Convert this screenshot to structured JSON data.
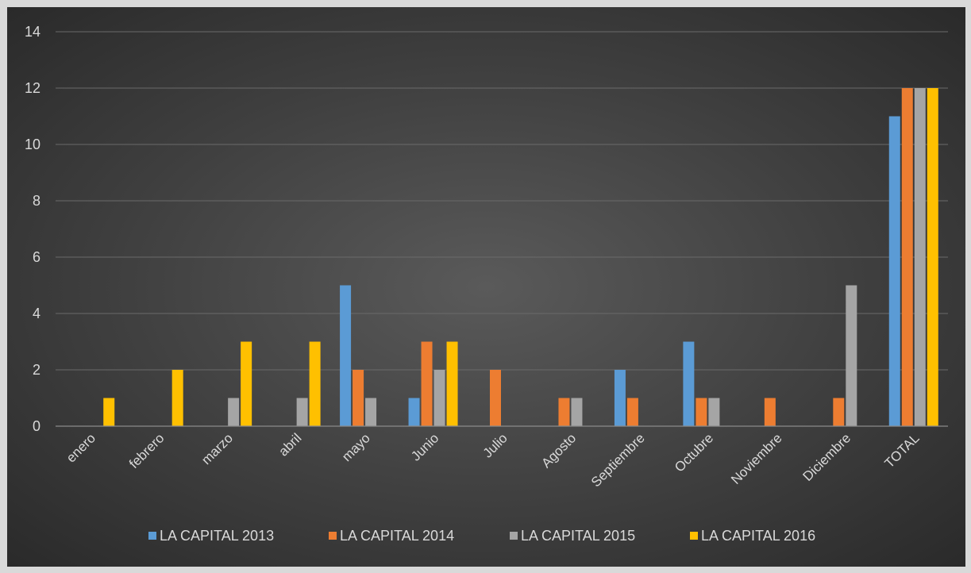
{
  "chart_data": {
    "type": "bar",
    "title": "",
    "xlabel": "",
    "ylabel": "",
    "ylim": [
      0,
      14
    ],
    "yticks": [
      0,
      2,
      4,
      6,
      8,
      10,
      12,
      14
    ],
    "grid": true,
    "legend_position": "bottom",
    "categories": [
      "enero",
      "febrero",
      "marzo",
      "abril",
      "mayo",
      "Junio",
      "Julio",
      "Agosto",
      "Septiembre",
      "Octubre",
      "Noviembre",
      "Diciembre",
      "TOTAL"
    ],
    "series": [
      {
        "name": "LA CAPITAL  2013",
        "color": "#5b9bd5",
        "values": [
          0,
          0,
          0,
          0,
          5,
          1,
          0,
          0,
          2,
          3,
          0,
          0,
          11
        ]
      },
      {
        "name": "LA CAPITAL  2014",
        "color": "#ed7d31",
        "values": [
          0,
          0,
          0,
          0,
          2,
          3,
          2,
          1,
          1,
          1,
          1,
          1,
          12
        ]
      },
      {
        "name": "LA CAPITAL  2015",
        "color": "#a5a5a5",
        "values": [
          0,
          0,
          1,
          1,
          1,
          2,
          0,
          1,
          0,
          1,
          0,
          5,
          12
        ]
      },
      {
        "name": "LA CAPITAL  2016",
        "color": "#ffc000",
        "values": [
          1,
          2,
          3,
          3,
          0,
          3,
          0,
          0,
          0,
          0,
          0,
          0,
          12
        ]
      }
    ]
  }
}
